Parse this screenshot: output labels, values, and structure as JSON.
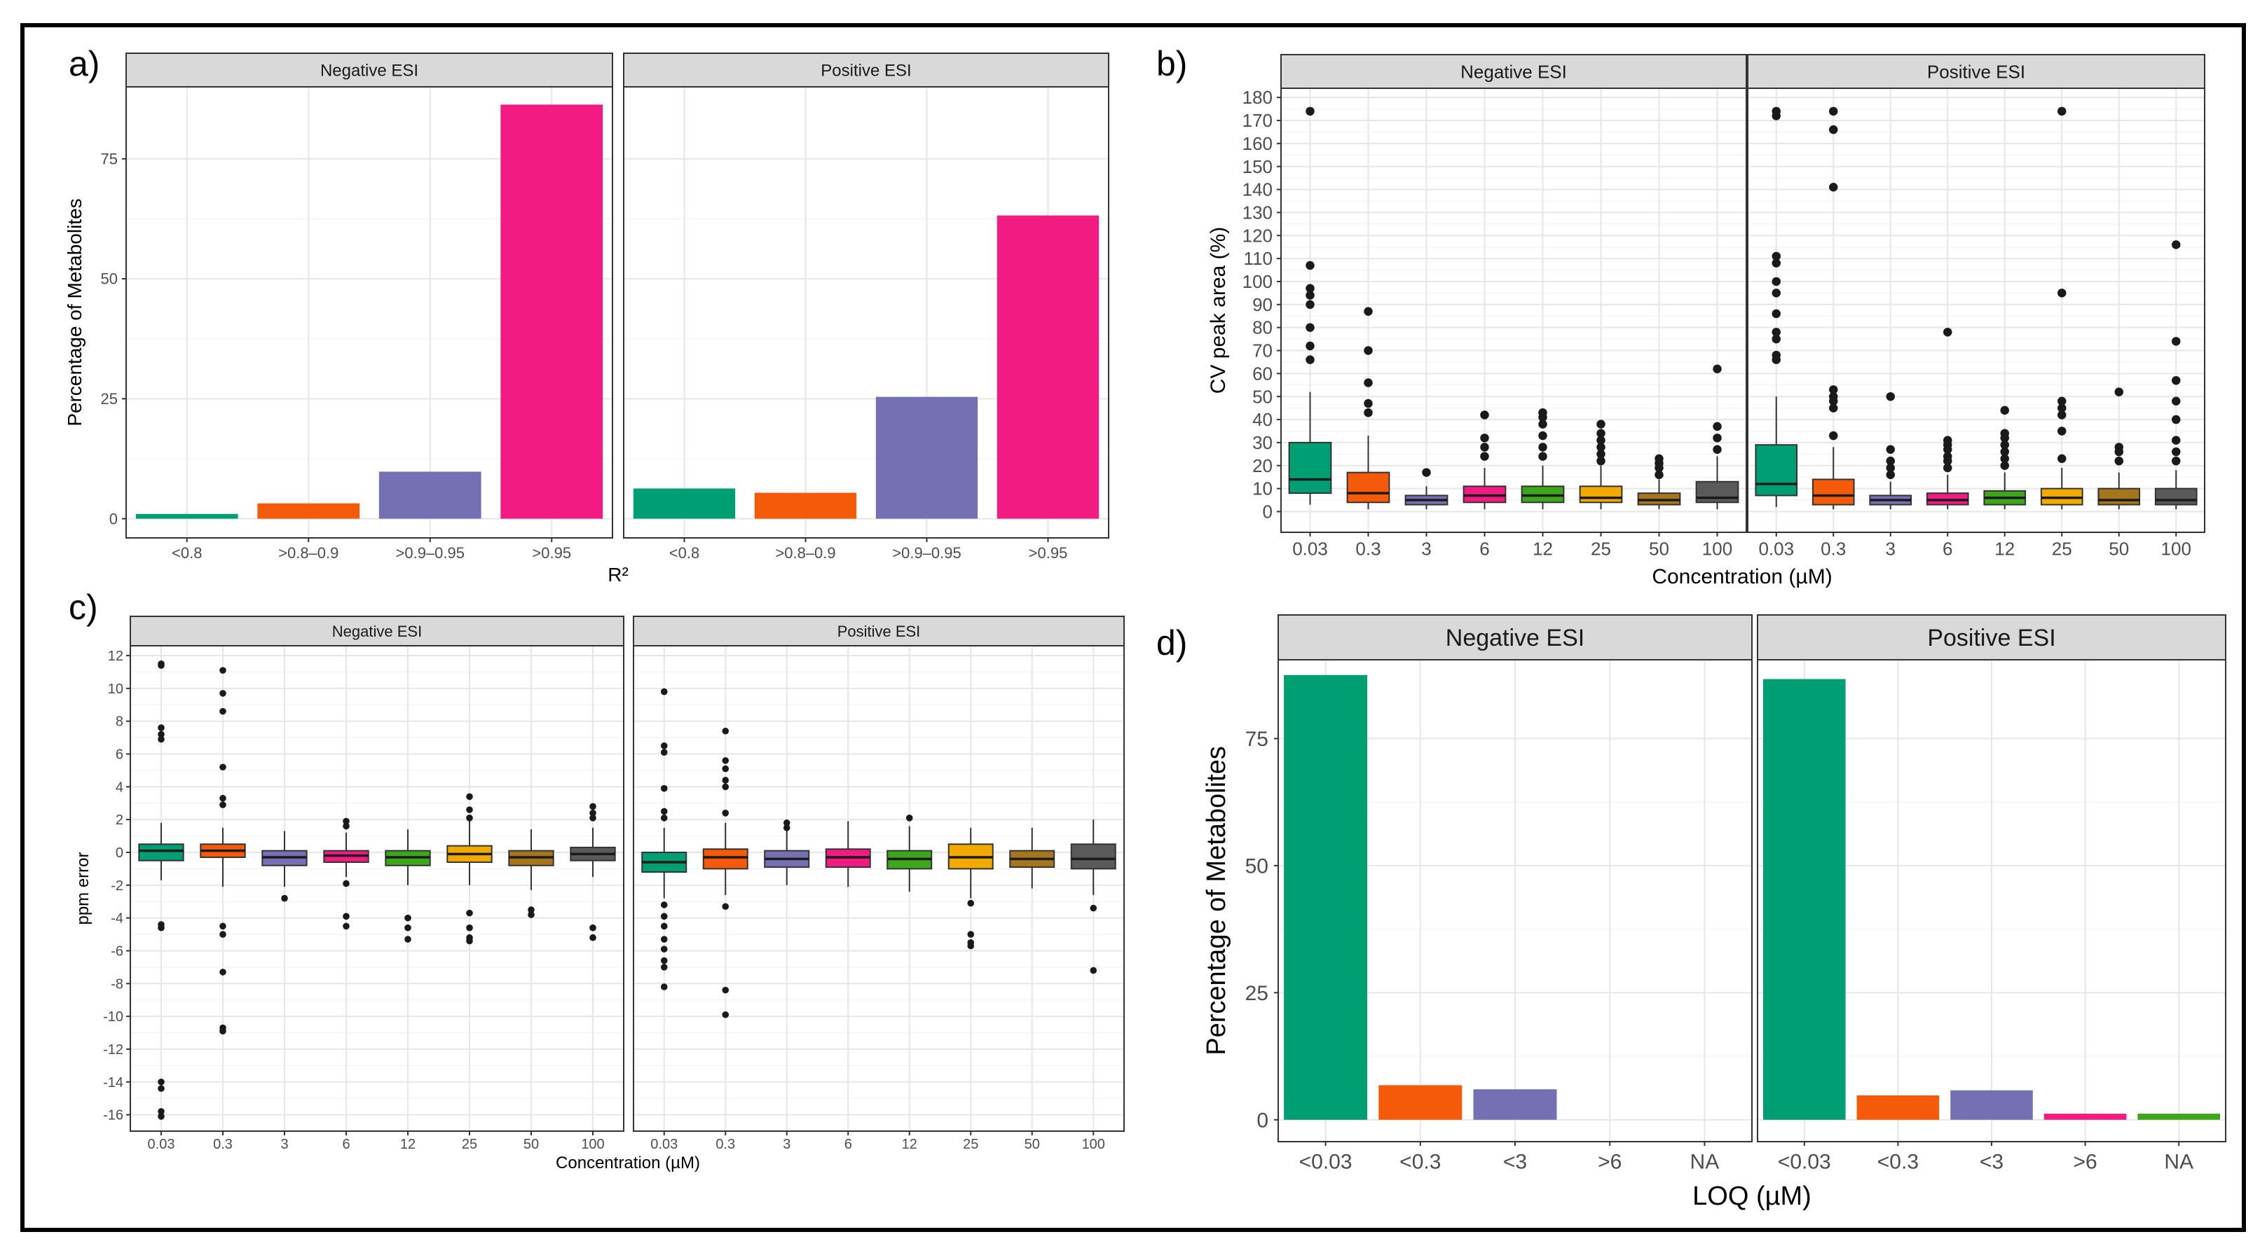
{
  "colors": {
    "green": "#009E73",
    "orange": "#F55A0A",
    "purple": "#7570B3",
    "pink": "#F21B82",
    "lime": "#3DA61A",
    "gold": "#F2A900",
    "brown": "#A6761D",
    "gray": "#5A5A5A"
  },
  "chart_data": [
    {
      "panel": "a)",
      "type": "bar",
      "facets": [
        "Negative ESI",
        "Positive ESI"
      ],
      "categories": [
        "<0.8",
        ">0.8–0.9",
        ">0.9–0.95",
        ">0.95"
      ],
      "series": [
        {
          "name": "Negative ESI",
          "values": [
            1,
            3.2,
            9.8,
            86.3
          ]
        },
        {
          "name": "Positive ESI",
          "values": [
            6.3,
            5.4,
            25.4,
            63.2
          ]
        }
      ],
      "bar_colors": [
        "green",
        "orange",
        "purple",
        "pink"
      ],
      "xlabel": "R²",
      "ylabel": "Percentage of Metabolites",
      "ylim": [
        -4,
        90
      ],
      "yticks": [
        0,
        25,
        50,
        75
      ],
      "grid": true
    },
    {
      "panel": "b)",
      "type": "box",
      "facets": [
        "Negative ESI",
        "Positive ESI"
      ],
      "categories": [
        "0.03",
        "0.3",
        "3",
        "6",
        "12",
        "25",
        "50",
        "100"
      ],
      "box_colors": [
        "green",
        "orange",
        "purple",
        "pink",
        "lime",
        "gold",
        "brown",
        "gray"
      ],
      "series": [
        {
          "name": "Negative ESI",
          "boxes": [
            {
              "q1": 8,
              "med": 14,
              "q3": 30,
              "lo": 3,
              "hi": 52,
              "out": [
                66,
                72,
                80,
                90,
                94,
                97,
                107,
                174
              ]
            },
            {
              "q1": 4,
              "med": 8,
              "q3": 17,
              "lo": 1,
              "hi": 33,
              "out": [
                43,
                47,
                56,
                70,
                87
              ]
            },
            {
              "q1": 3,
              "med": 5,
              "q3": 7,
              "lo": 1,
              "hi": 11,
              "out": [
                17
              ]
            },
            {
              "q1": 4,
              "med": 7,
              "q3": 11,
              "lo": 1,
              "hi": 19,
              "out": [
                24,
                28,
                32,
                42
              ]
            },
            {
              "q1": 4,
              "med": 7,
              "q3": 11,
              "lo": 1,
              "hi": 20,
              "out": [
                24,
                28,
                33,
                38,
                41,
                43
              ]
            },
            {
              "q1": 4,
              "med": 6,
              "q3": 11,
              "lo": 1,
              "hi": 20,
              "out": [
                22,
                25,
                28,
                31,
                34,
                38
              ]
            },
            {
              "q1": 3,
              "med": 5,
              "q3": 8,
              "lo": 1,
              "hi": 14,
              "out": [
                16,
                19,
                21,
                23
              ]
            },
            {
              "q1": 4,
              "med": 6,
              "q3": 13,
              "lo": 1,
              "hi": 24,
              "out": [
                27,
                32,
                37,
                62
              ]
            }
          ]
        },
        {
          "name": "Positive ESI",
          "boxes": [
            {
              "q1": 7,
              "med": 12,
              "q3": 29,
              "lo": 2,
              "hi": 50,
              "out": [
                66,
                68,
                75,
                78,
                86,
                95,
                100,
                108,
                111,
                172,
                174
              ]
            },
            {
              "q1": 3,
              "med": 7,
              "q3": 14,
              "lo": 1,
              "hi": 28,
              "out": [
                33,
                45,
                48,
                50,
                53,
                141,
                166,
                174
              ]
            },
            {
              "q1": 3,
              "med": 5,
              "q3": 7,
              "lo": 1,
              "hi": 13,
              "out": [
                16,
                19,
                22,
                27,
                50
              ]
            },
            {
              "q1": 3,
              "med": 5,
              "q3": 8,
              "lo": 1,
              "hi": 16,
              "out": [
                19,
                22,
                24,
                27,
                29,
                31,
                78
              ]
            },
            {
              "q1": 3,
              "med": 6,
              "q3": 9,
              "lo": 1,
              "hi": 17,
              "out": [
                20,
                23,
                26,
                29,
                32,
                34,
                44
              ]
            },
            {
              "q1": 3,
              "med": 6,
              "q3": 10,
              "lo": 1,
              "hi": 19,
              "out": [
                23,
                35,
                42,
                45,
                48,
                95,
                174
              ]
            },
            {
              "q1": 3,
              "med": 5,
              "q3": 10,
              "lo": 1,
              "hi": 17,
              "out": [
                22,
                26,
                28,
                52
              ]
            },
            {
              "q1": 3,
              "med": 5,
              "q3": 10,
              "lo": 1,
              "hi": 18,
              "out": [
                22,
                26,
                31,
                40,
                48,
                57,
                74,
                116
              ]
            }
          ]
        }
      ],
      "xlabel": "Concentration (µM)",
      "ylabel": "CV peak area (%)",
      "ylim": [
        -9,
        184
      ],
      "yticks": [
        0,
        10,
        20,
        30,
        40,
        50,
        60,
        70,
        80,
        90,
        100,
        110,
        120,
        130,
        140,
        150,
        160,
        170,
        180
      ],
      "grid": true
    },
    {
      "panel": "c)",
      "type": "box",
      "facets": [
        "Negative ESI",
        "Positive ESI"
      ],
      "categories": [
        "0.03",
        "0.3",
        "3",
        "6",
        "12",
        "25",
        "50",
        "100"
      ],
      "box_colors": [
        "green",
        "orange",
        "purple",
        "pink",
        "lime",
        "gold",
        "brown",
        "gray"
      ],
      "series": [
        {
          "name": "Negative ESI",
          "boxes": [
            {
              "q1": -0.5,
              "med": 0.1,
              "q3": 0.5,
              "lo": -1.7,
              "hi": 1.8,
              "out": [
                11.5,
                11.4,
                7.6,
                7.2,
                6.9,
                -4.4,
                -4.6,
                -14,
                -14.4,
                -15.8,
                -16.1
              ]
            },
            {
              "q1": -0.3,
              "med": 0.1,
              "q3": 0.5,
              "lo": -2.1,
              "hi": 1.5,
              "out": [
                11.1,
                9.7,
                8.6,
                5.2,
                3.3,
                2.9,
                -4.5,
                -5,
                -7.3,
                -10.7,
                -10.9
              ]
            },
            {
              "q1": -0.8,
              "med": -0.3,
              "q3": 0.1,
              "lo": -2.1,
              "hi": 1.3,
              "out": [
                -2.8
              ]
            },
            {
              "q1": -0.6,
              "med": -0.2,
              "q3": 0.1,
              "lo": -1.5,
              "hi": 1.2,
              "out": [
                1.9,
                1.6,
                -1.9,
                -3.9,
                -4.5
              ]
            },
            {
              "q1": -0.8,
              "med": -0.3,
              "q3": 0.1,
              "lo": -2,
              "hi": 1.4,
              "out": [
                -4,
                -4.6,
                -5.3
              ]
            },
            {
              "q1": -0.6,
              "med": -0.1,
              "q3": 0.4,
              "lo": -2,
              "hi": 2,
              "out": [
                3.4,
                2.6,
                2.1,
                -3.7,
                -4.6,
                -5.2,
                -5.4
              ]
            },
            {
              "q1": -0.8,
              "med": -0.3,
              "q3": 0.1,
              "lo": -2.3,
              "hi": 1.4,
              "out": [
                -3.5,
                -3.8
              ]
            },
            {
              "q1": -0.5,
              "med": -0.1,
              "q3": 0.3,
              "lo": -1.5,
              "hi": 1.5,
              "out": [
                2.8,
                2.4,
                2.1,
                -4.6,
                -5.2
              ]
            }
          ]
        },
        {
          "name": "Positive ESI",
          "boxes": [
            {
              "q1": -1.2,
              "med": -0.6,
              "q3": 0,
              "lo": -2.8,
              "hi": 1.5,
              "out": [
                9.8,
                6.5,
                6.1,
                3.9,
                2.5,
                2.1,
                -3.2,
                -3.9,
                -4.5,
                -5.3,
                -5.9,
                -6.6,
                -7,
                -8.2
              ]
            },
            {
              "q1": -1,
              "med": -0.3,
              "q3": 0.2,
              "lo": -2.6,
              "hi": 1.8,
              "out": [
                7.4,
                5.6,
                5.1,
                4.4,
                4,
                2.4,
                -3.3,
                -8.4,
                -9.9
              ]
            },
            {
              "q1": -0.9,
              "med": -0.4,
              "q3": 0.1,
              "lo": -2,
              "hi": 1.4,
              "out": [
                1.8,
                1.5
              ]
            },
            {
              "q1": -0.9,
              "med": -0.3,
              "q3": 0.2,
              "lo": -2.1,
              "hi": 1.9,
              "out": []
            },
            {
              "q1": -1,
              "med": -0.4,
              "q3": 0.1,
              "lo": -2.4,
              "hi": 1.6,
              "out": [
                2.1
              ]
            },
            {
              "q1": -1,
              "med": -0.3,
              "q3": 0.5,
              "lo": -2.8,
              "hi": 1.5,
              "out": [
                -3.1,
                -5,
                -5.5,
                -5.7
              ]
            },
            {
              "q1": -0.9,
              "med": -0.4,
              "q3": 0.1,
              "lo": -2.2,
              "hi": 1.5,
              "out": []
            },
            {
              "q1": -1,
              "med": -0.4,
              "q3": 0.5,
              "lo": -2.6,
              "hi": 2,
              "out": [
                -3.4,
                -7.2
              ]
            }
          ]
        }
      ],
      "xlabel": "Concentration (µM)",
      "ylabel": "ppm error",
      "ylim": [
        -17,
        12.6
      ],
      "yticks": [
        -16,
        -14,
        -12,
        -10,
        -8,
        -6,
        -4,
        -2,
        0,
        2,
        4,
        6,
        8,
        10,
        12
      ],
      "grid": true
    },
    {
      "panel": "d)",
      "type": "bar",
      "facets": [
        "Negative ESI",
        "Positive ESI"
      ],
      "categories": [
        "<0.03",
        "<0.3",
        "<3",
        ">6",
        "NA"
      ],
      "series": [
        {
          "name": "Negative ESI",
          "values": [
            87.5,
            6.8,
            6,
            0,
            0
          ]
        },
        {
          "name": "Positive ESI",
          "values": [
            86.7,
            4.8,
            5.8,
            1.2,
            1.2
          ]
        }
      ],
      "bar_colors": [
        "green",
        "orange",
        "purple",
        "pink",
        "lime"
      ],
      "xlabel": "LOQ (µM)",
      "ylabel": "Percentage of Metabolites",
      "ylim": [
        -4.3,
        90.5
      ],
      "yticks": [
        0,
        25,
        50,
        75
      ],
      "grid": true
    }
  ]
}
